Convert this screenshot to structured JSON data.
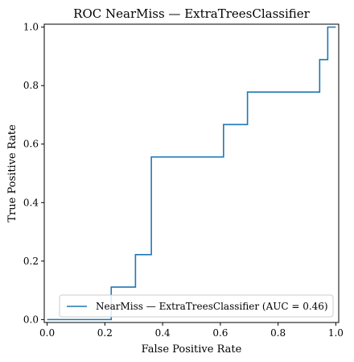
{
  "chart_data": {
    "type": "line",
    "title": "ROC NearMiss — ExtraTreesClassifier",
    "xlabel": "False Positive Rate",
    "ylabel": "True Positive Rate",
    "xlim": [
      -0.01,
      1.01
    ],
    "ylim": [
      -0.01,
      1.01
    ],
    "x_ticks": [
      0.0,
      0.2,
      0.4,
      0.6,
      0.8,
      1.0
    ],
    "y_ticks": [
      0.0,
      0.2,
      0.4,
      0.6,
      0.8,
      1.0
    ],
    "x_tick_labels": [
      "0.0",
      "0.2",
      "0.4",
      "0.6",
      "0.8",
      "1.0"
    ],
    "y_tick_labels": [
      "0.0",
      "0.2",
      "0.4",
      "0.6",
      "0.8",
      "1.0"
    ],
    "grid": false,
    "legend_position": "lower-right",
    "series": [
      {
        "name": "NearMiss — ExtraTreesClassifier (AUC = 0.46)",
        "color": "#1f77b4",
        "x": [
          0.0,
          0.0,
          0.222,
          0.222,
          0.306,
          0.306,
          0.361,
          0.361,
          0.611,
          0.611,
          0.694,
          0.694,
          0.944,
          0.944,
          0.972,
          0.972,
          1.0
        ],
        "y": [
          0.0,
          0.0,
          0.0,
          0.111,
          0.111,
          0.222,
          0.222,
          0.556,
          0.556,
          0.667,
          0.667,
          0.778,
          0.778,
          0.889,
          0.889,
          1.0,
          1.0
        ]
      }
    ]
  }
}
